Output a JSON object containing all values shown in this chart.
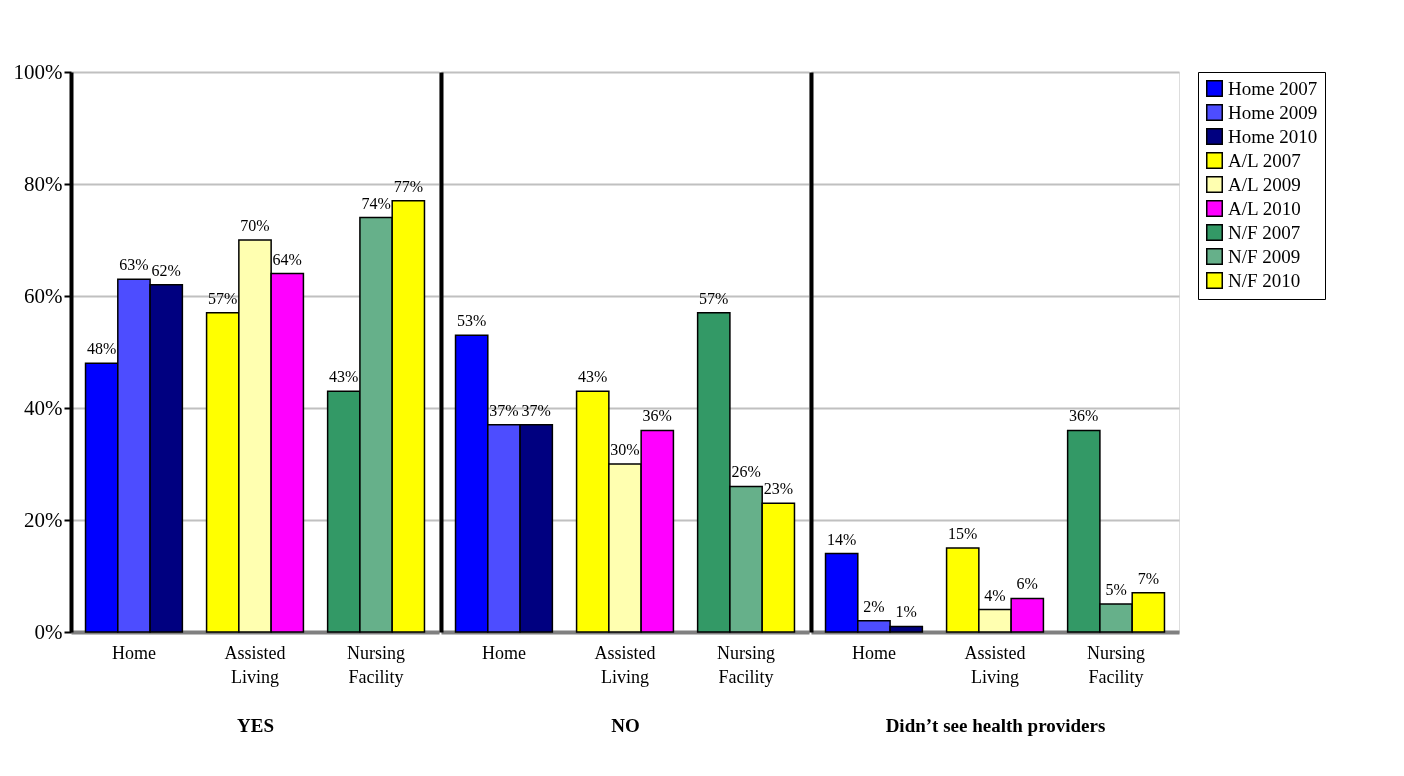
{
  "chart_data": [
    {
      "type": "bar",
      "xlabel": "YES",
      "categories": [
        "Home",
        "Assisted Living",
        "Nursing Facility"
      ],
      "ylim": [
        0,
        100
      ],
      "yticks": [
        {
          "value": 0,
          "label": "0%"
        },
        {
          "value": 20,
          "label": "20%"
        },
        {
          "value": 40,
          "label": "40%"
        },
        {
          "value": 60,
          "label": "60%"
        },
        {
          "value": 80,
          "label": "80%"
        },
        {
          "value": 100,
          "label": "100%"
        }
      ],
      "grid": "y",
      "legend": "right",
      "series": [
        {
          "name": "Home 2007",
          "color": "#0000ff",
          "values": [
            48,
            null,
            null
          ],
          "value_labels": [
            "48%",
            null,
            null
          ]
        },
        {
          "name": "Home 2009",
          "color": "#4d4dff",
          "values": [
            63,
            null,
            null
          ],
          "value_labels": [
            "63%",
            null,
            null
          ]
        },
        {
          "name": "Home 2010",
          "color": "#000080",
          "values": [
            62,
            null,
            null
          ],
          "value_labels": [
            "62%",
            null,
            null
          ]
        },
        {
          "name": "A/L 2007",
          "color": "#ffff00",
          "values": [
            null,
            57,
            null
          ],
          "value_labels": [
            null,
            "57%",
            null
          ]
        },
        {
          "name": "A/L 2009",
          "color": "#ffffb0",
          "values": [
            null,
            70,
            null
          ],
          "value_labels": [
            null,
            "70%",
            null
          ]
        },
        {
          "name": "A/L 2010",
          "color": "#ff00ff",
          "values": [
            null,
            64,
            null
          ],
          "value_labels": [
            null,
            "64%",
            null
          ]
        },
        {
          "name": "N/F 2007",
          "color": "#339966",
          "values": [
            null,
            null,
            43
          ],
          "value_labels": [
            null,
            null,
            "43%"
          ]
        },
        {
          "name": "N/F 2009",
          "color": "#66b08a",
          "values": [
            null,
            null,
            74
          ],
          "value_labels": [
            null,
            null,
            "74%"
          ]
        },
        {
          "name": "N/F 2010",
          "color": "#ffff00",
          "values": [
            null,
            null,
            77
          ],
          "value_labels": [
            null,
            null,
            "77%"
          ]
        }
      ]
    },
    {
      "type": "bar",
      "xlabel": "NO",
      "categories": [
        "Home",
        "Assisted Living",
        "Nursing Facility"
      ],
      "ylim": [
        0,
        100
      ],
      "yticks": [
        0,
        20,
        40,
        60,
        80,
        100
      ],
      "grid": "y",
      "tick_labels": "x",
      "series": [
        {
          "color": "#0000ff",
          "values": [
            53,
            null,
            null
          ],
          "value_labels": [
            "53%",
            null,
            null
          ]
        },
        {
          "color": "#4d4dff",
          "values": [
            37,
            null,
            null
          ],
          "value_labels": [
            "37%",
            null,
            null
          ]
        },
        {
          "color": "#000080",
          "values": [
            37,
            null,
            null
          ],
          "value_labels": [
            "37%",
            null,
            null
          ]
        },
        {
          "color": "#ffff00",
          "values": [
            null,
            43,
            null
          ],
          "value_labels": [
            null,
            "43%",
            null
          ]
        },
        {
          "color": "#ffffb0",
          "values": [
            null,
            30,
            null
          ],
          "value_labels": [
            null,
            "30%",
            null
          ]
        },
        {
          "color": "#ff00ff",
          "values": [
            null,
            36,
            null
          ],
          "value_labels": [
            null,
            "36%",
            null
          ]
        },
        {
          "color": "#339966",
          "values": [
            null,
            null,
            57
          ],
          "value_labels": [
            null,
            null,
            "57%"
          ]
        },
        {
          "color": "#66b08a",
          "values": [
            null,
            null,
            26
          ],
          "value_labels": [
            null,
            null,
            "26%"
          ]
        },
        {
          "color": "#ffff00",
          "values": [
            null,
            null,
            23
          ],
          "value_labels": [
            null,
            null,
            "23%"
          ]
        }
      ]
    },
    {
      "type": "bar",
      "xlabel": "Didn’t see health providers",
      "categories": [
        "Home",
        "Assisted Living",
        "Nursing Facility"
      ],
      "ylim": [
        0,
        100
      ],
      "yticks": [
        0,
        20,
        40,
        60,
        80,
        100
      ],
      "grid": "y",
      "tick_labels": "x",
      "series": [
        {
          "color": "#0000ff",
          "values": [
            14,
            null,
            null
          ],
          "value_labels": [
            "14%",
            null,
            null
          ]
        },
        {
          "color": "#4d4dff",
          "values": [
            2,
            null,
            null
          ],
          "value_labels": [
            "2%",
            null,
            null
          ]
        },
        {
          "color": "#000080",
          "values": [
            1,
            null,
            null
          ],
          "value_labels": [
            "1%",
            null,
            null
          ]
        },
        {
          "color": "#ffff00",
          "values": [
            null,
            15,
            null
          ],
          "value_labels": [
            null,
            "15%",
            null
          ]
        },
        {
          "color": "#ffffb0",
          "values": [
            null,
            4,
            null
          ],
          "value_labels": [
            null,
            "4%",
            null
          ]
        },
        {
          "color": "#ff00ff",
          "values": [
            null,
            6,
            null
          ],
          "value_labels": [
            null,
            "6%",
            null
          ]
        },
        {
          "color": "#339966",
          "values": [
            null,
            null,
            36
          ],
          "value_labels": [
            null,
            null,
            "36%"
          ]
        },
        {
          "color": "#66b08a",
          "values": [
            null,
            null,
            5
          ],
          "value_labels": [
            null,
            null,
            "5%"
          ]
        },
        {
          "color": "#ffff00",
          "values": [
            null,
            null,
            7
          ],
          "value_labels": [
            null,
            null,
            "7%"
          ]
        }
      ]
    }
  ]
}
